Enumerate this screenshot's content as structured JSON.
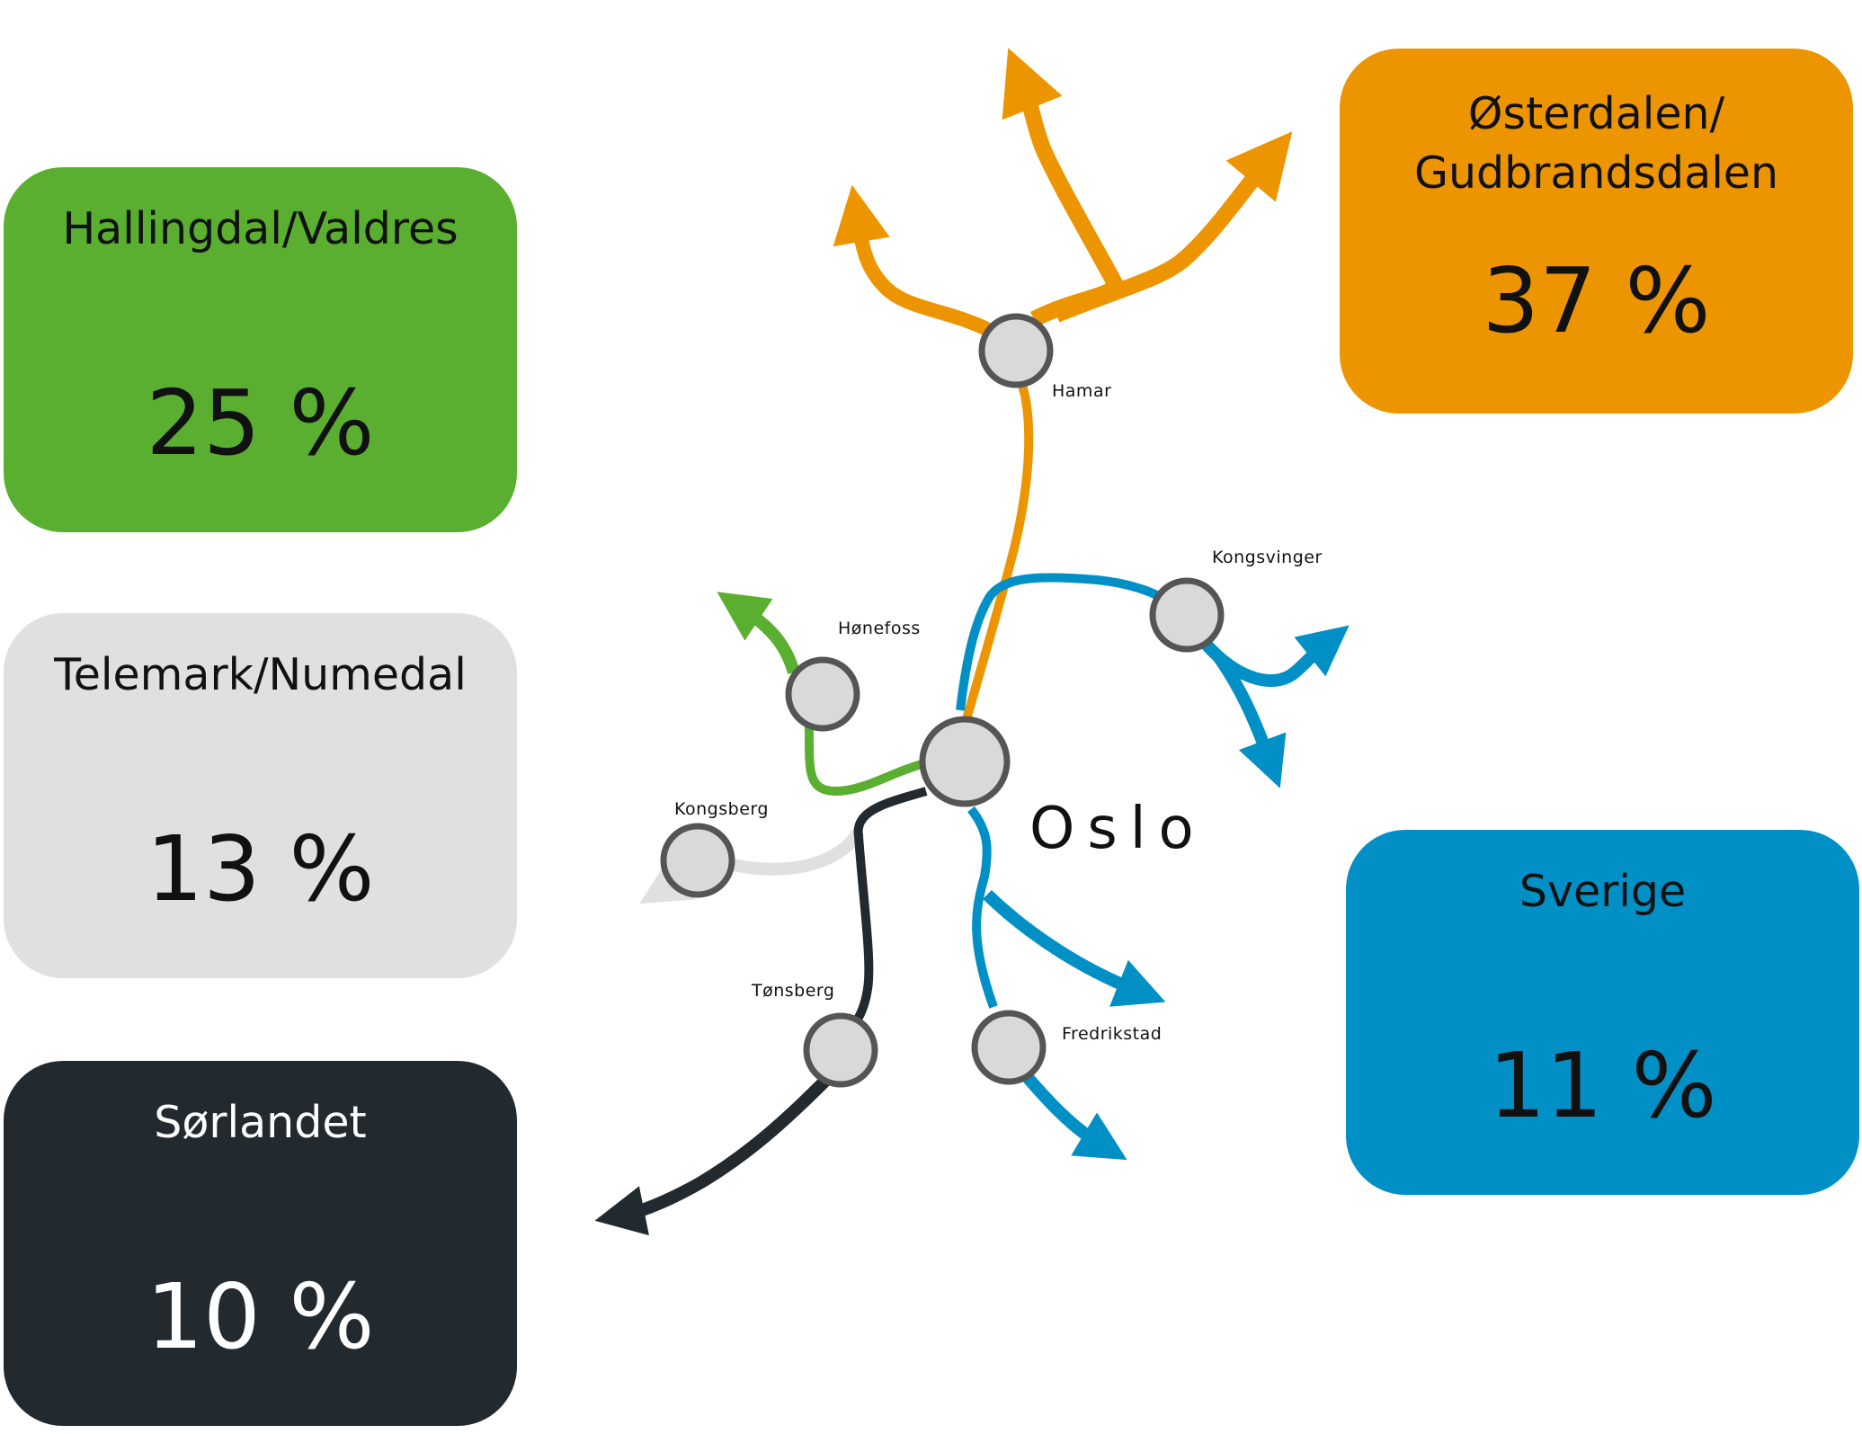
{
  "regions": {
    "hallingdal": {
      "name": "Hallingdal/Valdres",
      "percent": "25 %",
      "color": "#5aaf31"
    },
    "telemark": {
      "name": "Telemark/Numedal",
      "percent": "13 %",
      "color": "#e0e0e0"
    },
    "sorlandet": {
      "name": "Sørlandet",
      "percent": "10 %",
      "color": "#222a30"
    },
    "osterdalen": {
      "name_line1": "Østerdalen/",
      "name_line2": "Gudbrandsdalen",
      "percent": "37 %",
      "color": "#ec9500"
    },
    "sverige": {
      "name": "Sverige",
      "percent": "11 %",
      "color": "#0190c6"
    }
  },
  "map": {
    "hub": "Oslo",
    "cities": {
      "hamar": "Hamar",
      "honefoss": "Hønefoss",
      "kongsvinger": "Kongsvinger",
      "kongsberg": "Kongsberg",
      "tonsberg": "Tønsberg",
      "fredrikstad": "Fredrikstad"
    },
    "node_fill": "#d9d9d9",
    "node_stroke": "#555555"
  }
}
